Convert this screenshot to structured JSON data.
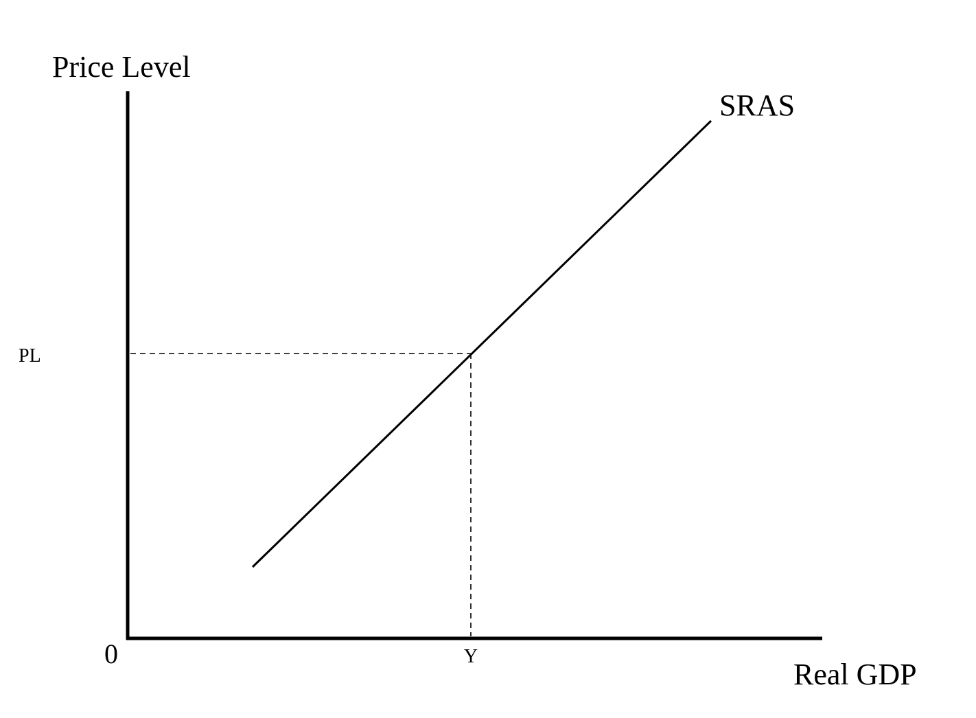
{
  "diagram": {
    "y_axis_label": "Price Level",
    "x_axis_label": "Real GDP",
    "origin_label": "0",
    "curve_label": "SRAS",
    "price_marker_label": "PL",
    "output_marker_label": "Y"
  },
  "colors": {
    "ink": "#000000",
    "background": "#ffffff"
  }
}
